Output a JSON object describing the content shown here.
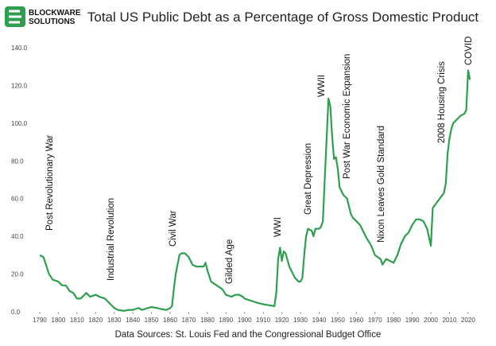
{
  "logo_text": [
    "BLOCKWARE",
    "SOLUTIONS"
  ],
  "chart_data": {
    "type": "line",
    "title": "Total US Public Debt as a Percentage of Gross Domestic Product",
    "footer": "Data Sources: St. Louis Fed and the Congressional Budget Office",
    "annotations": [
      "Post Revolutionary War",
      "Industrial Revolution",
      "Civil War",
      "Gilded Age",
      "WWI",
      "Great Depression",
      "WWII",
      "Post War Economic Expansion",
      "Nixon Leaves Gold Standard",
      "2008 Housing Crisis",
      "COVID"
    ],
    "x": [
      1790,
      1792,
      1795,
      1797,
      1800,
      1802,
      1804,
      1806,
      1808,
      1810,
      1812,
      1815,
      1817,
      1820,
      1822,
      1825,
      1828,
      1830,
      1832,
      1835,
      1838,
      1840,
      1843,
      1845,
      1848,
      1850,
      1853,
      1855,
      1858,
      1860,
      1861,
      1862,
      1863,
      1864,
      1865,
      1866,
      1868,
      1870,
      1872,
      1874,
      1876,
      1878,
      1879,
      1880,
      1882,
      1885,
      1888,
      1890,
      1893,
      1895,
      1897,
      1899,
      1900,
      1903,
      1906,
      1910,
      1913,
      1916,
      1917,
      1918,
      1919,
      1920,
      1921,
      1922,
      1924,
      1927,
      1929,
      1930,
      1931,
      1932,
      1933,
      1934,
      1936,
      1937,
      1938,
      1940,
      1941,
      1942,
      1943,
      1944,
      1945,
      1946,
      1947,
      1948,
      1949,
      1950,
      1951,
      1953,
      1955,
      1957,
      1958,
      1960,
      1962,
      1965,
      1968,
      1970,
      1973,
      1974,
      1976,
      1978,
      1980,
      1982,
      1984,
      1986,
      1988,
      1990,
      1992,
      1994,
      1996,
      1998,
      2000,
      2001,
      2004,
      2007,
      2008,
      2009,
      2010,
      2011,
      2012,
      2014,
      2016,
      2018,
      2019,
      2020,
      2021
    ],
    "series": [
      {
        "color": "#2e9e4f",
        "values": [
          30,
          29,
          20,
          17,
          16,
          14,
          14,
          11,
          10,
          7,
          7,
          10,
          8,
          9,
          8,
          7,
          4,
          2,
          1,
          0.5,
          1,
          1,
          2,
          1,
          2,
          2.5,
          2,
          1.5,
          1,
          2,
          3,
          12,
          20,
          25,
          30,
          31,
          31,
          29,
          25,
          24,
          24,
          24,
          26,
          22,
          16,
          14,
          12,
          9,
          8,
          9,
          9,
          8,
          7,
          6,
          5,
          4,
          3.5,
          3,
          10,
          28,
          34,
          27,
          32,
          31,
          24,
          18,
          16,
          16,
          18,
          30,
          40,
          44,
          43,
          40,
          44,
          44,
          45,
          48,
          70,
          91,
          113,
          109,
          93,
          81,
          82,
          76,
          66,
          62,
          60,
          52,
          50,
          48,
          46,
          40,
          35,
          30,
          28,
          25,
          28,
          27,
          26,
          30,
          36,
          40,
          42,
          46,
          49,
          49,
          48,
          44,
          35,
          55,
          59,
          63,
          68,
          84,
          92,
          97,
          100,
          102,
          104,
          105,
          107,
          128,
          123
        ]
      }
    ],
    "xlim": [
      1788,
      2024
    ],
    "ylim": [
      0,
      140
    ],
    "xticks": [
      1790,
      1800,
      1810,
      1820,
      1830,
      1840,
      1850,
      1860,
      1870,
      1880,
      1890,
      1900,
      1910,
      1920,
      1930,
      1940,
      1950,
      1960,
      1970,
      1980,
      1990,
      2000,
      2010,
      2020
    ],
    "yticks": [
      {
        "value": 0,
        "label": "0.0"
      },
      {
        "value": 20,
        "label": "20.0"
      },
      {
        "value": 40,
        "label": "40.0"
      },
      {
        "value": 60,
        "label": "60.0"
      },
      {
        "value": 80,
        "label": "80.0"
      },
      {
        "value": 100,
        "label": "100.0"
      },
      {
        "value": 120,
        "label": "120.0"
      },
      {
        "value": 140,
        "label": "140.0"
      }
    ],
    "grid": false
  }
}
